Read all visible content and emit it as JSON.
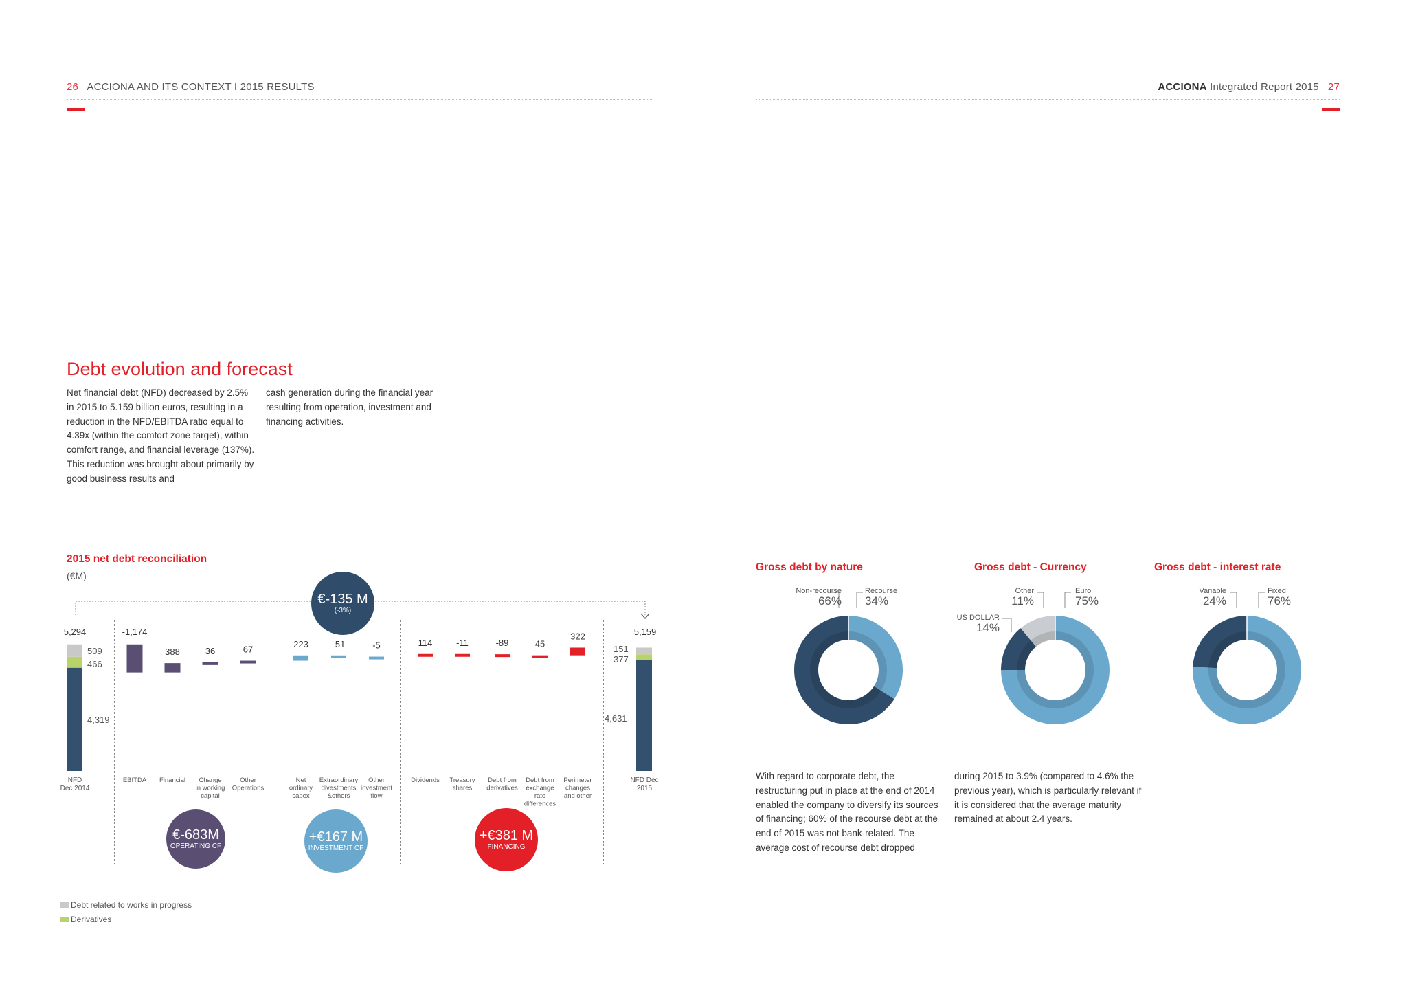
{
  "header_left": {
    "page": "26",
    "section": "ACCIONA AND ITS CONTEXT I 2015 RESULTS"
  },
  "header_right": {
    "brand": "ACCIONA",
    "report": " Integrated Report 2015",
    "page": "27"
  },
  "section": {
    "title": "Debt evolution and forecast",
    "col1": "Net financial debt (NFD) decreased by 2.5% in 2015 to 5.159 billion euros, resulting in a reduction in the NFD/EBITDA ratio equal to 4.39x (within the comfort zone target), within comfort range, and financial leverage (137%). This reduction was brought about primarily by good business results and",
    "col2": "cash generation during the financial year resulting from operation, investment and financing activities."
  },
  "waterfall": {
    "title": "2015 net debt reconciliation",
    "unit": "(€M)",
    "total_bubble": {
      "value": "€-135 M",
      "sub": "(-3%)"
    },
    "start": {
      "label": "NFD\nDec 2014",
      "total": "5,294",
      "works": "509",
      "derivatives": "466",
      "core": "4,319",
      "v_total": 5294,
      "v_core": 4319
    },
    "end": {
      "label": "NFD Dec\n2015",
      "total": "5,159",
      "works": "151",
      "derivatives": "377",
      "core": "4,631",
      "v_total": 5159,
      "v_core": 4631
    },
    "steps": [
      {
        "label": "EBITDA",
        "value": "-1,174",
        "v": -1174,
        "group": "op"
      },
      {
        "label": "Financial",
        "value": "388",
        "v": 388,
        "group": "op"
      },
      {
        "label": "Change\nin working\ncapital",
        "value": "36",
        "v": 36,
        "group": "op"
      },
      {
        "label": "Other\nOperations",
        "value": "67",
        "v": 67,
        "group": "op"
      },
      {
        "label": "Net\nordinary\ncapex",
        "value": "223",
        "v": 223,
        "group": "inv"
      },
      {
        "label": "Extraordinary\ndivestments\n&others",
        "value": "-51",
        "v": -51,
        "group": "inv"
      },
      {
        "label": "Other\ninvestment\nflow",
        "value": "-5",
        "v": -5,
        "group": "inv"
      },
      {
        "label": "Dividends",
        "value": "114",
        "v": 114,
        "group": "fin"
      },
      {
        "label": "Treasury\nshares",
        "value": "-11",
        "v": -11,
        "group": "fin"
      },
      {
        "label": "Debt from\nderivatives",
        "value": "-89",
        "v": -89,
        "group": "fin"
      },
      {
        "label": "Debt from\nexchange\nrate\ndifferences",
        "value": "45",
        "v": 45,
        "group": "fin"
      },
      {
        "label": "Perimeter\nchanges\nand other",
        "value": "322",
        "v": 322,
        "group": "fin"
      }
    ],
    "groups": {
      "op": {
        "value": "€-683M",
        "sub": "OPERATING CF",
        "color": "#5a4e73"
      },
      "inv": {
        "value": "+€167 M",
        "sub": "INVESTMENT CF",
        "color": "#6aa8cd"
      },
      "fin": {
        "value": "+€381 M",
        "sub": "FINANCING",
        "color": "#e32027"
      }
    },
    "legend": [
      {
        "label": "Debt related to works in progress",
        "color": "#c9c9c9"
      },
      {
        "label": "Derivatives",
        "color": "#b8d36a"
      }
    ],
    "colors": {
      "core": "#33516f",
      "works": "#c9c9c9",
      "derivatives": "#b8d36a"
    }
  },
  "chart_data": [
    {
      "type": "pie",
      "title": "Gross debt by nature",
      "labels": [
        "Non-recourse",
        "Recourse"
      ],
      "values": [
        66,
        34
      ],
      "value_labels": [
        "66%",
        "34%"
      ],
      "colors": [
        "#2f4d6a",
        "#6aa8cd"
      ]
    },
    {
      "type": "pie",
      "title": "Gross debt - Currency",
      "labels": [
        "Other",
        "Euro",
        "US DOLLAR"
      ],
      "values": [
        11,
        75,
        14
      ],
      "value_labels": [
        "11%",
        "75%",
        "14%"
      ],
      "colors": [
        "#c9cdd1",
        "#6aa8cd",
        "#2f4d6a"
      ]
    },
    {
      "type": "pie",
      "title": "Gross debt - interest rate",
      "labels": [
        "Variable",
        "Fixed"
      ],
      "values": [
        24,
        76
      ],
      "value_labels": [
        "24%",
        "76%"
      ],
      "colors": [
        "#2f4d6a",
        "#6aa8cd"
      ]
    }
  ],
  "right_text": {
    "col1": "With regard to corporate debt, the restructuring put in place at the end of 2014 enabled the company to diversify its sources of financing; 60% of the recourse debt at the end of 2015 was not bank-related. The average cost of recourse debt dropped",
    "col2": "during 2015 to 3.9% (compared to 4.6% the previous year), which is particularly relevant if it is considered that the average maturity remained at about 2.4 years."
  }
}
